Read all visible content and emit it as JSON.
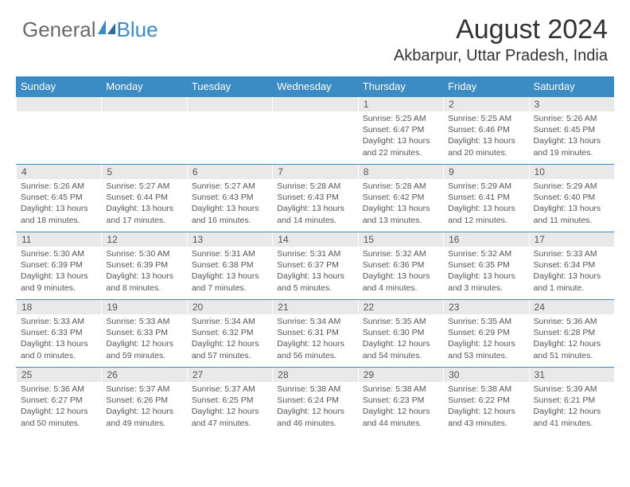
{
  "logo": {
    "general": "General",
    "blue": "Blue"
  },
  "title": "August 2024",
  "location": "Akbarpur, Uttar Pradesh, India",
  "colors": {
    "accent": "#3b8bc4",
    "headerBg": "#3b8bc4",
    "dayBar": "#e9e9e9",
    "text": "#555555",
    "logoGray": "#6a6a6a"
  },
  "dayNames": [
    "Sunday",
    "Monday",
    "Tuesday",
    "Wednesday",
    "Thursday",
    "Friday",
    "Saturday"
  ],
  "weeks": [
    [
      null,
      null,
      null,
      null,
      {
        "n": "1",
        "sr": "5:25 AM",
        "ss": "6:47 PM",
        "dl": "13 hours and 22 minutes."
      },
      {
        "n": "2",
        "sr": "5:25 AM",
        "ss": "6:46 PM",
        "dl": "13 hours and 20 minutes."
      },
      {
        "n": "3",
        "sr": "5:26 AM",
        "ss": "6:45 PM",
        "dl": "13 hours and 19 minutes."
      }
    ],
    [
      {
        "n": "4",
        "sr": "5:26 AM",
        "ss": "6:45 PM",
        "dl": "13 hours and 18 minutes."
      },
      {
        "n": "5",
        "sr": "5:27 AM",
        "ss": "6:44 PM",
        "dl": "13 hours and 17 minutes."
      },
      {
        "n": "6",
        "sr": "5:27 AM",
        "ss": "6:43 PM",
        "dl": "13 hours and 16 minutes."
      },
      {
        "n": "7",
        "sr": "5:28 AM",
        "ss": "6:43 PM",
        "dl": "13 hours and 14 minutes."
      },
      {
        "n": "8",
        "sr": "5:28 AM",
        "ss": "6:42 PM",
        "dl": "13 hours and 13 minutes."
      },
      {
        "n": "9",
        "sr": "5:29 AM",
        "ss": "6:41 PM",
        "dl": "13 hours and 12 minutes."
      },
      {
        "n": "10",
        "sr": "5:29 AM",
        "ss": "6:40 PM",
        "dl": "13 hours and 11 minutes."
      }
    ],
    [
      {
        "n": "11",
        "sr": "5:30 AM",
        "ss": "6:39 PM",
        "dl": "13 hours and 9 minutes."
      },
      {
        "n": "12",
        "sr": "5:30 AM",
        "ss": "6:39 PM",
        "dl": "13 hours and 8 minutes."
      },
      {
        "n": "13",
        "sr": "5:31 AM",
        "ss": "6:38 PM",
        "dl": "13 hours and 7 minutes."
      },
      {
        "n": "14",
        "sr": "5:31 AM",
        "ss": "6:37 PM",
        "dl": "13 hours and 5 minutes."
      },
      {
        "n": "15",
        "sr": "5:32 AM",
        "ss": "6:36 PM",
        "dl": "13 hours and 4 minutes."
      },
      {
        "n": "16",
        "sr": "5:32 AM",
        "ss": "6:35 PM",
        "dl": "13 hours and 3 minutes."
      },
      {
        "n": "17",
        "sr": "5:33 AM",
        "ss": "6:34 PM",
        "dl": "13 hours and 1 minute."
      }
    ],
    [
      {
        "n": "18",
        "sr": "5:33 AM",
        "ss": "6:33 PM",
        "dl": "13 hours and 0 minutes."
      },
      {
        "n": "19",
        "sr": "5:33 AM",
        "ss": "6:33 PM",
        "dl": "12 hours and 59 minutes."
      },
      {
        "n": "20",
        "sr": "5:34 AM",
        "ss": "6:32 PM",
        "dl": "12 hours and 57 minutes."
      },
      {
        "n": "21",
        "sr": "5:34 AM",
        "ss": "6:31 PM",
        "dl": "12 hours and 56 minutes."
      },
      {
        "n": "22",
        "sr": "5:35 AM",
        "ss": "6:30 PM",
        "dl": "12 hours and 54 minutes."
      },
      {
        "n": "23",
        "sr": "5:35 AM",
        "ss": "6:29 PM",
        "dl": "12 hours and 53 minutes."
      },
      {
        "n": "24",
        "sr": "5:36 AM",
        "ss": "6:28 PM",
        "dl": "12 hours and 51 minutes."
      }
    ],
    [
      {
        "n": "25",
        "sr": "5:36 AM",
        "ss": "6:27 PM",
        "dl": "12 hours and 50 minutes."
      },
      {
        "n": "26",
        "sr": "5:37 AM",
        "ss": "6:26 PM",
        "dl": "12 hours and 49 minutes."
      },
      {
        "n": "27",
        "sr": "5:37 AM",
        "ss": "6:25 PM",
        "dl": "12 hours and 47 minutes."
      },
      {
        "n": "28",
        "sr": "5:38 AM",
        "ss": "6:24 PM",
        "dl": "12 hours and 46 minutes."
      },
      {
        "n": "29",
        "sr": "5:38 AM",
        "ss": "6:23 PM",
        "dl": "12 hours and 44 minutes."
      },
      {
        "n": "30",
        "sr": "5:38 AM",
        "ss": "6:22 PM",
        "dl": "12 hours and 43 minutes."
      },
      {
        "n": "31",
        "sr": "5:39 AM",
        "ss": "6:21 PM",
        "dl": "12 hours and 41 minutes."
      }
    ]
  ],
  "labels": {
    "sunrise": "Sunrise:",
    "sunset": "Sunset:",
    "daylight": "Daylight:"
  }
}
